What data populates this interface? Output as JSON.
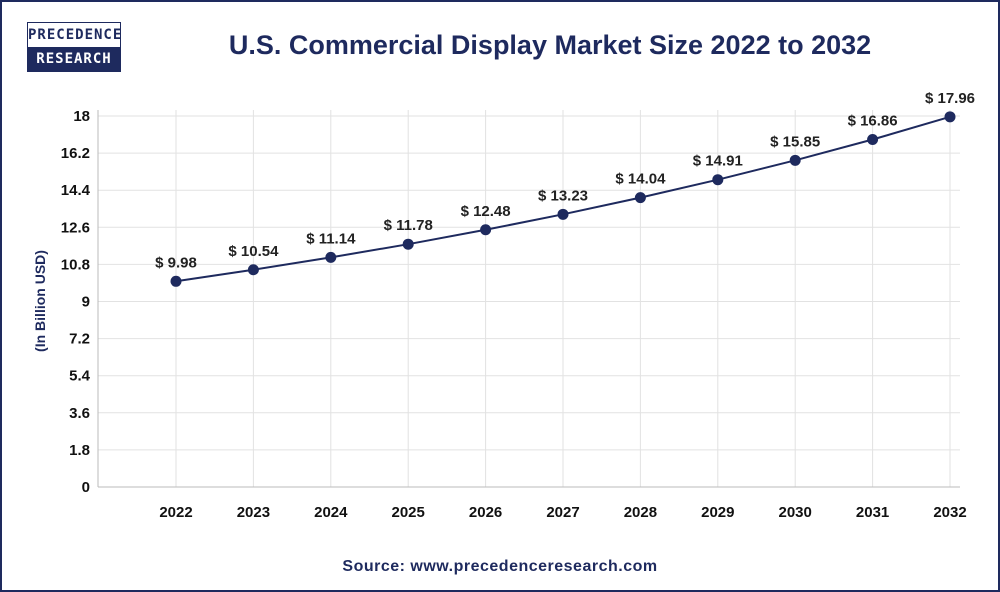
{
  "logo": {
    "line1": "PRECEDENCE",
    "line2": "RESEARCH"
  },
  "chart_data": {
    "type": "line",
    "title": "U.S. Commercial Display Market Size 2022 to 2032",
    "xlabel": "",
    "ylabel": "(In Billion USD)",
    "categories": [
      "2022",
      "2023",
      "2024",
      "2025",
      "2026",
      "2027",
      "2028",
      "2029",
      "2030",
      "2031",
      "2032"
    ],
    "values": [
      9.98,
      10.54,
      11.14,
      11.78,
      12.48,
      13.23,
      14.04,
      14.91,
      15.85,
      16.86,
      17.96
    ],
    "data_labels": [
      "$ 9.98",
      "$ 10.54",
      "$ 11.14",
      "$ 11.78",
      "$ 12.48",
      "$ 13.23",
      "$ 14.04",
      "$ 14.91",
      "$ 15.85",
      "$ 16.86",
      "$ 17.96"
    ],
    "yticks": [
      "0",
      "1.8",
      "3.6",
      "5.4",
      "7.2",
      "9",
      "10.8",
      "12.6",
      "14.4",
      "16.2",
      "18"
    ],
    "ylim": [
      0,
      18
    ],
    "grid": true,
    "line_color": "#1e2a5e"
  },
  "source": "Source: www.precedenceresearch.com"
}
